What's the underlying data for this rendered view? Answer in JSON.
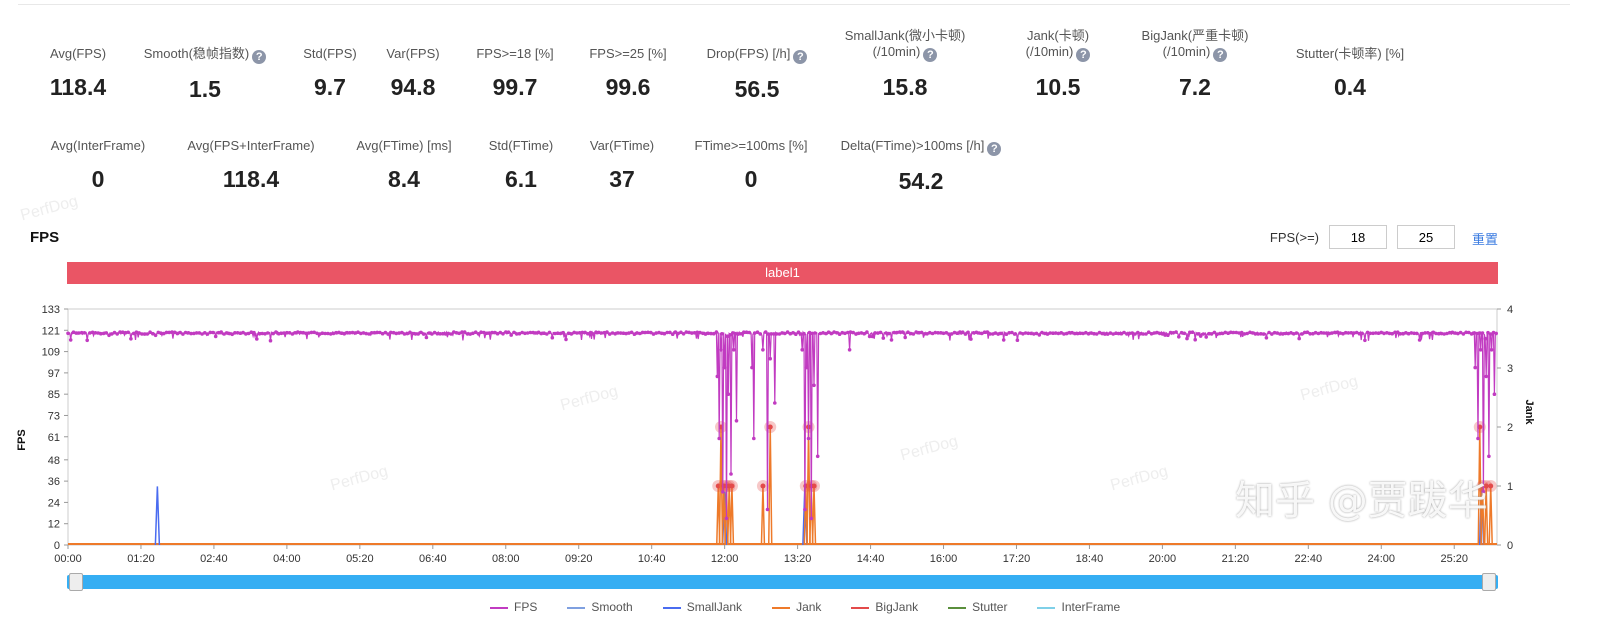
{
  "stats_row1": [
    {
      "label": "Avg(FPS)",
      "value": "118.4",
      "help": false
    },
    {
      "label": "Smooth(稳帧指数)",
      "value": "1.5",
      "help": true
    },
    {
      "label": "Std(FPS)",
      "value": "9.7",
      "help": false
    },
    {
      "label": "Var(FPS)",
      "value": "94.8",
      "help": false
    },
    {
      "label": "FPS>=18 [%]",
      "value": "99.7",
      "help": false
    },
    {
      "label": "FPS>=25 [%]",
      "value": "99.6",
      "help": false
    },
    {
      "label": "Drop(FPS) [/h]",
      "value": "56.5",
      "help": true
    },
    {
      "label": "SmallJank(微小卡顿)",
      "label2": "(/10min)",
      "value": "15.8",
      "help": true
    },
    {
      "label": "Jank(卡顿)",
      "label2": "(/10min)",
      "value": "10.5",
      "help": true
    },
    {
      "label": "BigJank(严重卡顿)",
      "label2": "(/10min)",
      "value": "7.2",
      "help": true
    },
    {
      "label": "Stutter(卡顿率) [%]",
      "value": "0.4",
      "help": false
    }
  ],
  "stats_row2": [
    {
      "label": "Avg(InterFrame)",
      "value": "0",
      "help": false
    },
    {
      "label": "Avg(FPS+InterFrame)",
      "value": "118.4",
      "help": false
    },
    {
      "label": "Avg(FTime) [ms]",
      "value": "8.4",
      "help": false
    },
    {
      "label": "Std(FTime)",
      "value": "6.1",
      "help": false
    },
    {
      "label": "Var(FTime)",
      "value": "37",
      "help": false
    },
    {
      "label": "FTime>=100ms [%]",
      "value": "0",
      "help": false
    },
    {
      "label": "Delta(FTime)>100ms [/h]",
      "value": "54.2",
      "help": true
    }
  ],
  "help_glyph": "?",
  "watermark": "PerfDog",
  "footer_watermark": "知乎 @贾跋华",
  "fps_panel": {
    "title": "FPS",
    "threshold_label": "FPS(>=)",
    "threshold1": "18",
    "threshold2": "25",
    "reset_label": "重置",
    "label_bar": "label1"
  },
  "chart_data": {
    "type": "line",
    "title": "FPS",
    "ylabel": "FPS",
    "y2label": "Jank",
    "ylim": [
      0,
      133
    ],
    "y2lim": [
      0,
      4
    ],
    "yticks": [
      "0",
      "12",
      "24",
      "36",
      "48",
      "61",
      "73",
      "85",
      "97",
      "109",
      "121",
      "133"
    ],
    "y2ticks": [
      "0",
      "1",
      "2",
      "3",
      "4"
    ],
    "xticks": [
      "00:00",
      "01:20",
      "02:40",
      "04:00",
      "05:20",
      "06:40",
      "08:00",
      "09:20",
      "10:40",
      "12:00",
      "13:20",
      "14:40",
      "16:00",
      "17:20",
      "18:40",
      "20:00",
      "21:20",
      "22:40",
      "24:00",
      "25:20"
    ],
    "xlim_seconds": [
      0,
      1567
    ],
    "fps_baseline": 120,
    "fps_dips": [
      [
        712,
        95
      ],
      [
        714,
        60
      ],
      [
        716,
        110
      ],
      [
        718,
        30
      ],
      [
        720,
        100
      ],
      [
        722,
        15
      ],
      [
        724,
        85
      ],
      [
        727,
        40
      ],
      [
        730,
        110
      ],
      [
        733,
        70
      ],
      [
        750,
        100
      ],
      [
        752,
        60
      ],
      [
        762,
        110
      ],
      [
        767,
        20
      ],
      [
        770,
        105
      ],
      [
        775,
        80
      ],
      [
        805,
        110
      ],
      [
        808,
        20
      ],
      [
        810,
        100
      ],
      [
        812,
        60
      ],
      [
        815,
        15
      ],
      [
        818,
        90
      ],
      [
        822,
        50
      ],
      [
        857,
        110
      ],
      [
        1543,
        100
      ],
      [
        1546,
        60
      ],
      [
        1549,
        110
      ],
      [
        1552,
        30
      ],
      [
        1555,
        95
      ],
      [
        1558,
        50
      ],
      [
        1561,
        110
      ],
      [
        1564,
        85
      ]
    ],
    "jank_events": [
      [
        713,
        1
      ],
      [
        716,
        2
      ],
      [
        719,
        1
      ],
      [
        722,
        1
      ],
      [
        725,
        1
      ],
      [
        728,
        1
      ],
      [
        762,
        1
      ],
      [
        770,
        2
      ],
      [
        809,
        1
      ],
      [
        812,
        2
      ],
      [
        815,
        1
      ],
      [
        818,
        1
      ],
      [
        1548,
        2
      ],
      [
        1551,
        1
      ],
      [
        1555,
        1
      ],
      [
        1560,
        1
      ]
    ],
    "spike_events": [
      [
        98,
        33
      ],
      [
        720,
        30
      ],
      [
        808,
        34
      ],
      [
        1550,
        33
      ]
    ],
    "legend": [
      "FPS",
      "Smooth",
      "SmallJank",
      "Jank",
      "BigJank",
      "Stutter",
      "InterFrame"
    ],
    "colors": {
      "fps": "#c13bc1",
      "smalljank": "#4a6cf0",
      "jank": "#ee7a2a",
      "bigjank": "#e34a4a",
      "stutter": "#5a8f3c",
      "interframe": "#7fd0e8",
      "labelbar": "#ea5565",
      "slider": "#35aef3"
    }
  }
}
